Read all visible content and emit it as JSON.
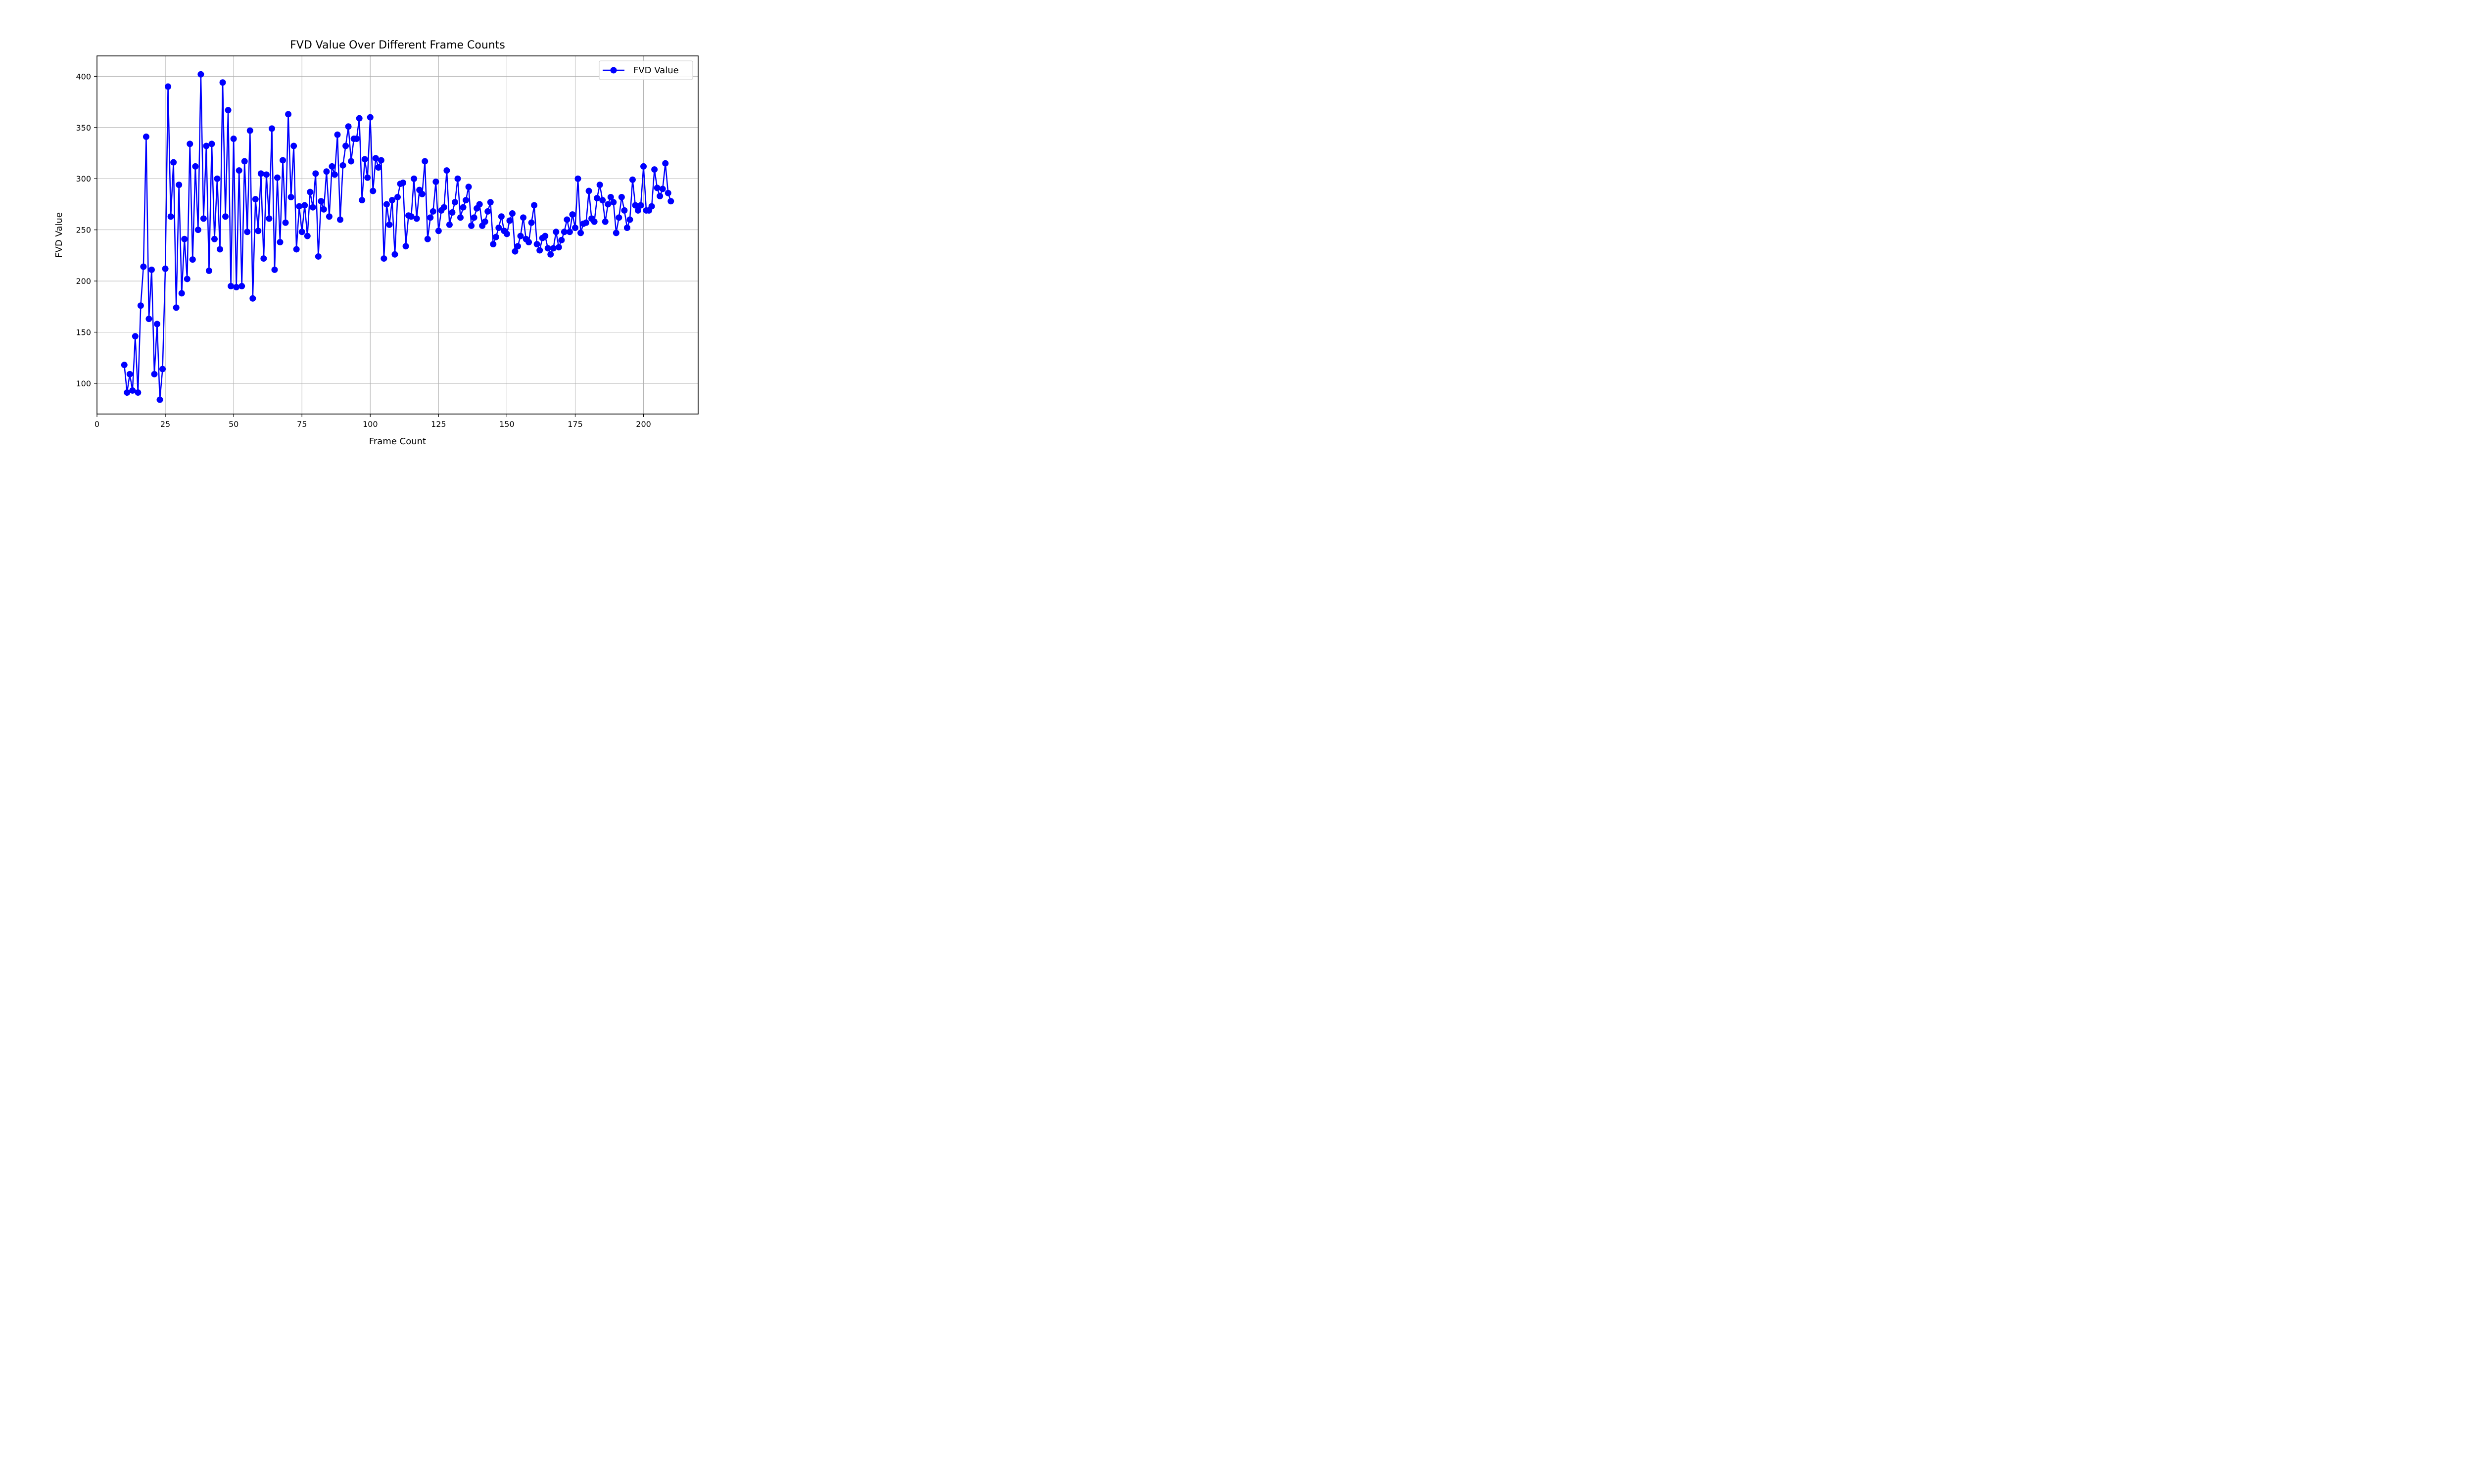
{
  "chart_data": {
    "type": "line",
    "title": "FVD Value Over Different Frame Counts",
    "xlabel": "Frame Count",
    "ylabel": "FVD Value",
    "xlim": [
      0,
      220
    ],
    "ylim": [
      70,
      420
    ],
    "xticks": [
      0,
      25,
      50,
      75,
      100,
      125,
      150,
      175,
      200
    ],
    "yticks": [
      100,
      150,
      200,
      250,
      300,
      350,
      400
    ],
    "grid": true,
    "legend_position": "upper-right",
    "series": [
      {
        "name": "FVD Value",
        "color": "#0000ff",
        "marker": "circle",
        "x": [
          10,
          11,
          12,
          13,
          14,
          15,
          16,
          17,
          18,
          19,
          20,
          21,
          22,
          23,
          24,
          25,
          26,
          27,
          28,
          29,
          30,
          31,
          32,
          33,
          34,
          35,
          36,
          37,
          38,
          39,
          40,
          41,
          42,
          43,
          44,
          45,
          46,
          47,
          48,
          49,
          50,
          51,
          52,
          53,
          54,
          55,
          56,
          57,
          58,
          59,
          60,
          61,
          62,
          63,
          64,
          65,
          66,
          67,
          68,
          69,
          70,
          71,
          72,
          73,
          74,
          75,
          76,
          77,
          78,
          79,
          80,
          81,
          82,
          83,
          84,
          85,
          86,
          87,
          88,
          89,
          90,
          91,
          92,
          93,
          94,
          95,
          96,
          97,
          98,
          99,
          100,
          101,
          102,
          103,
          104,
          105,
          106,
          107,
          108,
          109,
          110,
          111,
          112,
          113,
          114,
          115,
          116,
          117,
          118,
          119,
          120,
          121,
          122,
          123,
          124,
          125,
          126,
          127,
          128,
          129,
          130,
          131,
          132,
          133,
          134,
          135,
          136,
          137,
          138,
          139,
          140,
          141,
          142,
          143,
          144,
          145,
          146,
          147,
          148,
          149,
          150,
          151,
          152,
          153,
          154,
          155,
          156,
          157,
          158,
          159,
          160,
          161,
          162,
          163,
          164,
          165,
          166,
          167,
          168,
          169,
          170,
          171,
          172,
          173,
          174,
          175,
          176,
          177,
          178,
          179,
          180,
          181,
          182,
          183,
          184,
          185,
          186,
          187,
          188,
          189,
          190,
          191,
          192,
          193,
          194,
          195,
          196,
          197,
          198,
          199,
          200,
          201,
          202,
          203,
          204,
          205,
          206,
          207,
          208,
          209,
          210
        ],
        "y": [
          118,
          91,
          109,
          93,
          146,
          91,
          176,
          214,
          341,
          163,
          211,
          109,
          158,
          84,
          114,
          212,
          390,
          263,
          316,
          174,
          294,
          188,
          241,
          202,
          334,
          221,
          312,
          250,
          402,
          261,
          332,
          210,
          334,
          241,
          300,
          231,
          394,
          263,
          367,
          195,
          339,
          194,
          308,
          195,
          317,
          248,
          347,
          183,
          280,
          249,
          305,
          222,
          304,
          261,
          349,
          211,
          301,
          238,
          318,
          257,
          363,
          282,
          332,
          231,
          273,
          248,
          274,
          244,
          287,
          272,
          305,
          224,
          278,
          270,
          307,
          263,
          312,
          304,
          343,
          260,
          313,
          332,
          351,
          317,
          339,
          339,
          359,
          279,
          319,
          301,
          360,
          288,
          320,
          311,
          318,
          222,
          275,
          255,
          279,
          226,
          282,
          295,
          296,
          234,
          264,
          263,
          300,
          261,
          289,
          285,
          317,
          241,
          262,
          268,
          297,
          249,
          269,
          272,
          308,
          255,
          267,
          277,
          300,
          262,
          272,
          279,
          292,
          254,
          262,
          271,
          275,
          254,
          258,
          268,
          277,
          236,
          243,
          252,
          263,
          249,
          246,
          259,
          266,
          229,
          234,
          244,
          262,
          241,
          238,
          257,
          274,
          236,
          230,
          242,
          244,
          232,
          226,
          232,
          248,
          233,
          240,
          248,
          260,
          248,
          265,
          252,
          300,
          247,
          256,
          257,
          288,
          261,
          258,
          281,
          294,
          279,
          258,
          275,
          282,
          277,
          247,
          262,
          282,
          269,
          252,
          260,
          299,
          274,
          269,
          274,
          312,
          269,
          269,
          273,
          309,
          291,
          283,
          290,
          315,
          286,
          278
        ]
      }
    ]
  }
}
